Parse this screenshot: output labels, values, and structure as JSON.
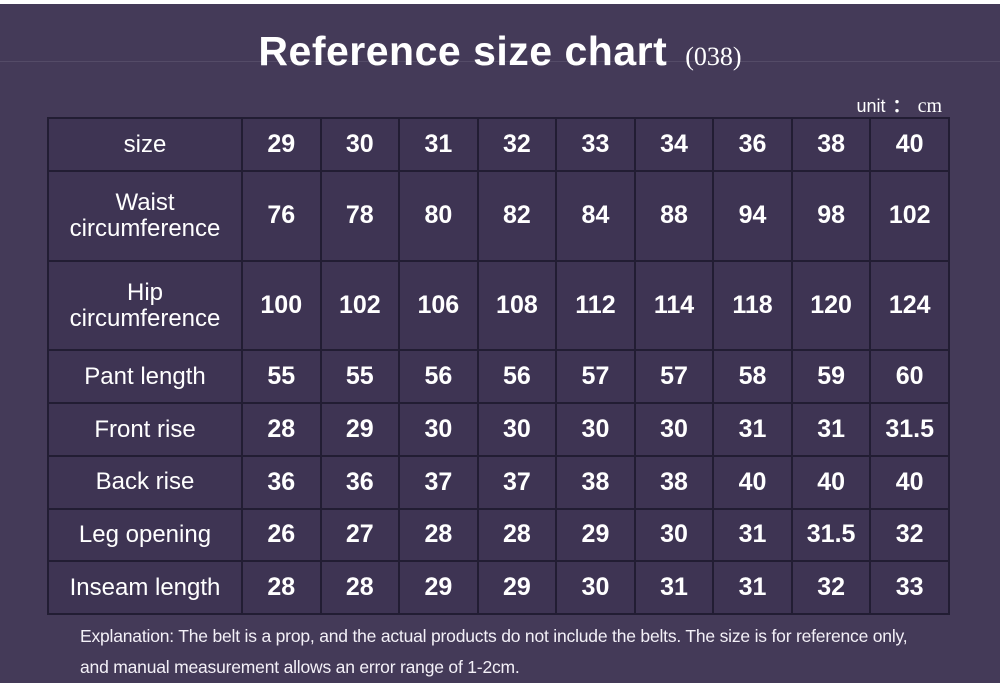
{
  "page": {
    "title": "Reference size chart",
    "title_code": "(038)",
    "unit": {
      "label": "unit",
      "colon": "：",
      "value": "cm"
    }
  },
  "table": {
    "rows": [
      {
        "label": "size",
        "values": [
          "29",
          "30",
          "31",
          "32",
          "33",
          "34",
          "36",
          "38",
          "40"
        ]
      },
      {
        "label": "Waist circumference",
        "values": [
          "76",
          "78",
          "80",
          "82",
          "84",
          "88",
          "94",
          "98",
          "102"
        ]
      },
      {
        "label": "Hip circumference",
        "values": [
          "100",
          "102",
          "106",
          "108",
          "112",
          "114",
          "118",
          "120",
          "124"
        ]
      },
      {
        "label": "Pant length",
        "values": [
          "55",
          "55",
          "56",
          "56",
          "57",
          "57",
          "58",
          "59",
          "60"
        ]
      },
      {
        "label": "Front rise",
        "values": [
          "28",
          "29",
          "30",
          "30",
          "30",
          "30",
          "31",
          "31",
          "31.5"
        ]
      },
      {
        "label": "Back rise",
        "values": [
          "36",
          "36",
          "37",
          "37",
          "38",
          "38",
          "40",
          "40",
          "40"
        ]
      },
      {
        "label": "Leg opening",
        "values": [
          "26",
          "27",
          "28",
          "28",
          "29",
          "30",
          "31",
          "31.5",
          "32"
        ]
      },
      {
        "label": "Inseam length",
        "values": [
          "28",
          "28",
          "29",
          "29",
          "30",
          "31",
          "31",
          "32",
          "33"
        ]
      }
    ]
  },
  "explanation": {
    "line1": "Explanation: The belt is a prop, and the actual products do not include the belts. The size is for reference only,",
    "line2": "and manual measurement allows an error range of 1-2cm."
  },
  "colors": {
    "panel_bg": "#443a58",
    "cell_bg": "#3e3453",
    "grid_line": "#221d33",
    "text": "#ffffff"
  }
}
